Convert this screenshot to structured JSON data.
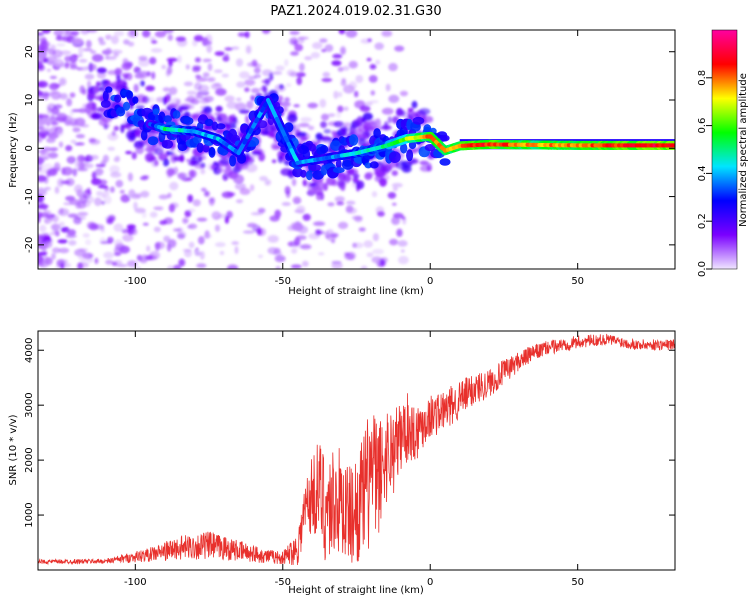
{
  "title": "PAZ1.2024.019.02.31.G30",
  "chart_data": [
    {
      "type": "heatmap",
      "xlabel": "Height of straight line (km)",
      "ylabel": "Frequency (Hz)",
      "xlim": [
        -133,
        83
      ],
      "ylim": [
        -25,
        24.5
      ],
      "xticks": [
        -100,
        -50,
        0,
        50
      ],
      "xtick_labels": [
        "-100",
        "-50",
        "0",
        "50"
      ],
      "yticks": [
        -20,
        -10,
        0,
        10,
        20
      ],
      "ytick_labels": [
        "-20",
        "-10",
        "0",
        "10",
        "20"
      ],
      "colorbar": {
        "label": "Normalized spectral amplitude",
        "range": [
          0,
          1
        ],
        "ticks": [
          0.0,
          0.2,
          0.4,
          0.6,
          0.8
        ],
        "tick_labels": [
          "0.0",
          "0.2",
          "0.4",
          "0.6",
          "0.8"
        ],
        "colormap": [
          "#f0e6ff",
          "#7a00ff",
          "#0000ff",
          "#00e5ff",
          "#00ff00",
          "#ffff00",
          "#ff0000",
          "#ff00a0"
        ]
      },
      "ridge": [
        {
          "x": -105,
          "y": 10,
          "a": 0.25
        },
        {
          "x": -95,
          "y": 5,
          "a": 0.3
        },
        {
          "x": -90,
          "y": 4,
          "a": 0.5
        },
        {
          "x": -80,
          "y": 3.5,
          "a": 0.4
        },
        {
          "x": -72,
          "y": 2,
          "a": 0.4
        },
        {
          "x": -65,
          "y": -1,
          "a": 0.35
        },
        {
          "x": -55,
          "y": 10,
          "a": 0.35
        },
        {
          "x": -45,
          "y": -3,
          "a": 0.4
        },
        {
          "x": -35,
          "y": -2,
          "a": 0.35
        },
        {
          "x": -25,
          "y": -1,
          "a": 0.45
        },
        {
          "x": -15,
          "y": 0.5,
          "a": 0.5
        },
        {
          "x": -8,
          "y": 2,
          "a": 0.65
        },
        {
          "x": 0,
          "y": 2.5,
          "a": 0.8
        },
        {
          "x": 5,
          "y": -0.5,
          "a": 0.75
        },
        {
          "x": 10,
          "y": 0.5,
          "a": 0.8
        },
        {
          "x": 20,
          "y": 0.8,
          "a": 0.85
        },
        {
          "x": 35,
          "y": 0.7,
          "a": 0.75
        },
        {
          "x": 50,
          "y": 0.6,
          "a": 0.8
        },
        {
          "x": 65,
          "y": 0.6,
          "a": 0.85
        },
        {
          "x": 83,
          "y": 0.6,
          "a": 0.9
        }
      ]
    },
    {
      "type": "line",
      "xlabel": "Height of straight line (km)",
      "ylabel": "SNR (10 * v/v)",
      "xlim": [
        -133,
        83
      ],
      "ylim": [
        0,
        4350
      ],
      "xticks": [
        -100,
        -50,
        0,
        50
      ],
      "xtick_labels": [
        "-100",
        "-50",
        "0",
        "50"
      ],
      "yticks": [
        1000,
        2000,
        3000,
        4000
      ],
      "ytick_labels": [
        "1000",
        "2000",
        "3000",
        "4000"
      ],
      "color": "#e8302c",
      "x": [
        -133,
        -110,
        -95,
        -85,
        -75,
        -65,
        -55,
        -50,
        -45,
        -42,
        -38,
        -35,
        -32,
        -30,
        -27,
        -25,
        -22,
        -20,
        -18,
        -15,
        -12,
        -10,
        -8,
        -5,
        -2,
        0,
        5,
        10,
        15,
        20,
        25,
        30,
        35,
        40,
        50,
        60,
        70,
        83
      ],
      "y": [
        150,
        160,
        280,
        400,
        450,
        350,
        250,
        220,
        400,
        1200,
        1500,
        1100,
        1300,
        1200,
        1000,
        1100,
        1400,
        1800,
        1600,
        2100,
        2200,
        2400,
        2600,
        2500,
        2700,
        2800,
        2900,
        3100,
        3300,
        3400,
        3600,
        3800,
        3950,
        4050,
        4150,
        4200,
        4100,
        4100
      ],
      "noise": [
        40,
        45,
        130,
        220,
        260,
        190,
        130,
        120,
        320,
        600,
        900,
        1100,
        1000,
        1000,
        900,
        1000,
        1200,
        1400,
        1100,
        900,
        800,
        700,
        650,
        550,
        450,
        400,
        380,
        350,
        300,
        260,
        230,
        180,
        150,
        130,
        120,
        100,
        100,
        100
      ]
    }
  ]
}
